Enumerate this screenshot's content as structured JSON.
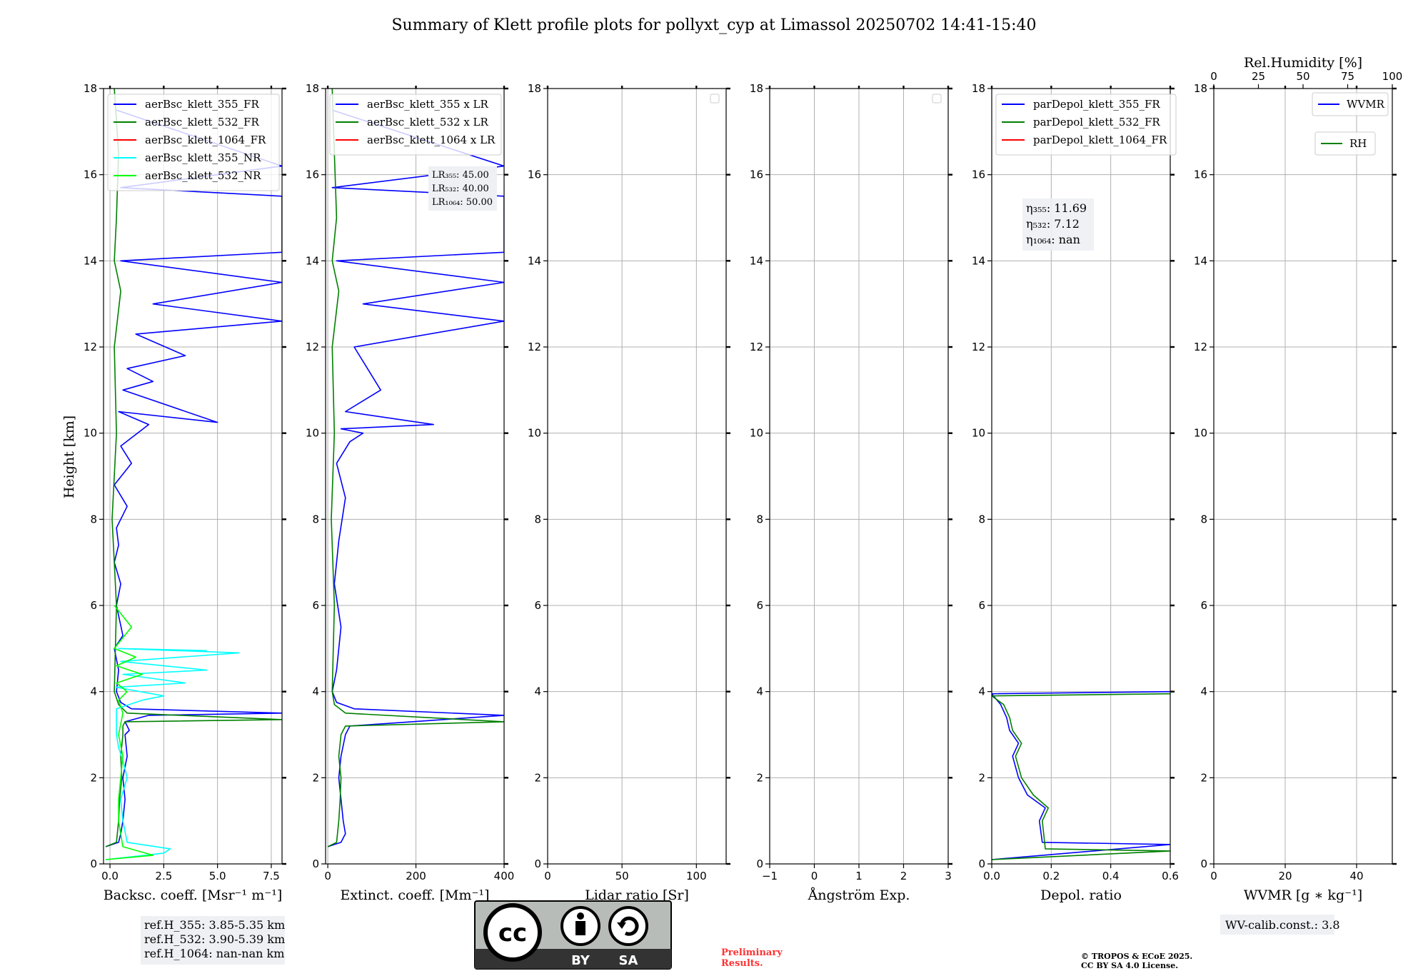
{
  "title": "Summary of Klett profile plots for pollyxt_cyp at Limassol 20250702 14:41-15:40",
  "ylabel": "Height [km]",
  "y_ticks": [
    "0",
    "2",
    "4",
    "6",
    "8",
    "10",
    "12",
    "14",
    "16",
    "18"
  ],
  "colors": {
    "blue": "#0000ff",
    "green": "#008000",
    "red": "#ff0000",
    "cyan": "#00ffff",
    "lightgreen": "#00ff00",
    "grid": "#b0b0b0"
  },
  "chart_data": [
    {
      "type": "line",
      "xlabel": "Backsc. coeff. [Msr⁻¹ m⁻¹]",
      "xlim": [
        -0.3,
        8.0
      ],
      "ylim": [
        0,
        18
      ],
      "x_ticks": [
        {
          "v": 0,
          "t": "0.0"
        },
        {
          "v": 2.5,
          "t": "2.5"
        },
        {
          "v": 5,
          "t": "5.0"
        },
        {
          "v": 7.5,
          "t": "7.5"
        }
      ],
      "legend": [
        "aerBsc_klett_355_FR",
        "aerBsc_klett_532_FR",
        "aerBsc_klett_1064_FR",
        "aerBsc_klett_355_NR",
        "aerBsc_klett_532_NR"
      ],
      "series": [
        {
          "name": "aerBsc_klett_355_FR",
          "color": "blue",
          "x": [
            -0.2,
            0.4,
            0.5,
            0.6,
            0.7,
            0.6,
            0.8,
            0.7,
            0.9,
            0.8,
            0.7,
            1.8,
            8.0,
            1.0,
            0.5,
            0.3,
            0.4,
            0.2,
            0.6,
            0.3,
            0.5,
            0.2,
            0.4,
            0.3,
            0.8,
            0.2,
            1.0,
            0.5,
            1.8,
            0.4,
            5.0,
            0.6,
            2.0,
            0.8,
            3.5,
            1.2,
            8.0,
            2.0,
            8.0,
            0.5,
            8.0,
            8.0,
            0.5,
            8.0,
            0.3
          ],
          "y": [
            0.4,
            0.5,
            0.7,
            1.0,
            1.5,
            2.0,
            2.5,
            3.0,
            3.1,
            3.2,
            3.3,
            3.45,
            3.5,
            3.6,
            3.75,
            4.0,
            4.5,
            5.0,
            5.3,
            6.0,
            6.5,
            7.0,
            7.4,
            7.8,
            8.3,
            8.8,
            9.3,
            9.7,
            10.2,
            10.5,
            10.25,
            11.0,
            11.2,
            11.5,
            11.8,
            12.3,
            12.6,
            13.0,
            13.5,
            14.0,
            14.2,
            15.5,
            15.7,
            16.2,
            17.5
          ]
        },
        {
          "name": "aerBsc_klett_532_FR",
          "color": "green",
          "x": [
            -0.2,
            0.3,
            0.4,
            0.45,
            0.55,
            0.5,
            0.6,
            0.6,
            0.7,
            8.0,
            0.8,
            0.4,
            0.2,
            0.3,
            0.1,
            0.3,
            0.2,
            0.5,
            0.2,
            0.3,
            0.4,
            0.2
          ],
          "y": [
            0.4,
            0.5,
            1.0,
            1.5,
            2.0,
            2.5,
            3.0,
            3.2,
            3.3,
            3.35,
            3.5,
            3.7,
            4.0,
            6.0,
            8.0,
            10.0,
            12.0,
            13.3,
            14.0,
            15.0,
            16.5,
            18.0
          ]
        },
        {
          "name": "aerBsc_klett_355_NR",
          "color": "cyan",
          "x": [
            -0.2,
            2.5,
            2.8,
            0.8,
            0.6,
            0.5,
            0.8,
            0.6,
            0.4,
            0.3,
            0.3,
            1.5,
            2.5,
            0.3,
            3.5,
            0.6,
            4.5,
            0.5,
            6.0,
            0.4,
            4.5
          ],
          "y": [
            0.1,
            0.25,
            0.35,
            0.5,
            1.0,
            1.5,
            2.0,
            2.4,
            2.7,
            3.0,
            3.6,
            3.8,
            3.9,
            4.1,
            4.2,
            4.4,
            4.5,
            4.7,
            4.9,
            5.0,
            4.95
          ]
        },
        {
          "name": "aerBsc_klett_532_NR",
          "color": "lightgreen",
          "x": [
            -0.2,
            2.0,
            0.6,
            0.4,
            0.4,
            0.5,
            0.6,
            0.4,
            0.6,
            0.4,
            0.8,
            0.3,
            1.5,
            0.3,
            1.2,
            0.2,
            1.0,
            0.2
          ],
          "y": [
            0.1,
            0.2,
            0.4,
            1.0,
            1.5,
            2.0,
            2.5,
            3.0,
            3.5,
            3.8,
            4.0,
            4.2,
            4.4,
            4.6,
            4.8,
            5.0,
            5.5,
            6.0
          ]
        }
      ],
      "notes": [
        "ref.H_355: 3.85-5.35 km",
        "ref.H_532: 3.90-5.39 km",
        "ref.H_1064: nan-nan km"
      ]
    },
    {
      "type": "line",
      "xlabel": "Extinct. coeff. [Mm⁻¹]",
      "xlim": [
        -5,
        400
      ],
      "ylim": [
        0,
        18
      ],
      "x_ticks": [
        {
          "v": 0,
          "t": "0"
        },
        {
          "v": 200,
          "t": "200"
        },
        {
          "v": 400,
          "t": "400"
        }
      ],
      "legend": [
        "aerBsc_klett_355 x LR",
        "aerBsc_klett_532 x LR",
        "aerBsc_klett_1064 x LR"
      ],
      "series": [
        {
          "name": "aerBsc_klett_355 x LR",
          "color": "blue",
          "x": [
            0,
            30,
            40,
            35,
            30,
            25,
            30,
            40,
            50,
            400,
            60,
            20,
            10,
            20,
            30,
            15,
            25,
            40,
            20,
            50,
            80,
            30,
            240,
            40,
            120,
            60,
            400,
            80,
            400,
            20,
            400,
            400,
            10,
            400,
            10
          ],
          "y": [
            0.4,
            0.5,
            0.7,
            1.0,
            1.5,
            2.0,
            2.5,
            3.0,
            3.2,
            3.45,
            3.6,
            3.75,
            4.0,
            4.5,
            5.5,
            6.5,
            7.5,
            8.5,
            9.3,
            9.8,
            10.0,
            10.1,
            10.2,
            10.5,
            11.0,
            12.0,
            12.6,
            13.0,
            13.5,
            14.0,
            14.2,
            15.5,
            15.7,
            16.2,
            17.5
          ]
        },
        {
          "name": "aerBsc_klett_532 x LR",
          "color": "green",
          "x": [
            0,
            20,
            25,
            28,
            30,
            25,
            30,
            40,
            400,
            40,
            15,
            10,
            15,
            8,
            15,
            10,
            25,
            10,
            20,
            15,
            10
          ],
          "y": [
            0.4,
            0.5,
            1.0,
            1.5,
            2.0,
            2.5,
            3.0,
            3.2,
            3.3,
            3.5,
            3.7,
            4.0,
            6.0,
            8.0,
            10.0,
            12.0,
            13.3,
            14.0,
            15.0,
            16.5,
            18.0
          ]
        }
      ],
      "notes": [
        "LR₃₅₅: 45.00",
        "LR₅₃₂: 40.00",
        "LR₁₀₆₄: 50.00"
      ]
    },
    {
      "type": "line",
      "xlabel": "Lidar ratio [Sr]",
      "xlim": [
        0,
        120
      ],
      "ylim": [
        0,
        18
      ],
      "x_ticks": [
        {
          "v": 0,
          "t": "0"
        },
        {
          "v": 50,
          "t": "50"
        },
        {
          "v": 100,
          "t": "100"
        }
      ],
      "series": []
    },
    {
      "type": "line",
      "xlabel": "Ångström Exp.",
      "xlim": [
        -1,
        3
      ],
      "ylim": [
        0,
        18
      ],
      "x_ticks": [
        {
          "v": -1,
          "t": "−1"
        },
        {
          "v": 0,
          "t": "0"
        },
        {
          "v": 1,
          "t": "1"
        },
        {
          "v": 2,
          "t": "2"
        },
        {
          "v": 3,
          "t": "3"
        }
      ],
      "series": []
    },
    {
      "type": "line",
      "xlabel": "Depol. ratio",
      "xlim": [
        0,
        0.6
      ],
      "ylim": [
        0,
        18
      ],
      "x_ticks": [
        {
          "v": 0,
          "t": "0.0"
        },
        {
          "v": 0.2,
          "t": "0.2"
        },
        {
          "v": 0.4,
          "t": "0.4"
        },
        {
          "v": 0.6,
          "t": "0.6"
        }
      ],
      "legend": [
        "parDepol_klett_355_FR",
        "parDepol_klett_532_FR",
        "parDepol_klett_1064_FR"
      ],
      "series": [
        {
          "name": "parDepol_klett_355_FR",
          "color": "blue",
          "x": [
            0,
            0.6,
            0.17,
            0.16,
            0.18,
            0.12,
            0.09,
            0.07,
            0.09,
            0.06,
            0.05,
            0.03,
            0.0,
            0.6
          ],
          "y": [
            0.1,
            0.45,
            0.5,
            1.0,
            1.3,
            1.6,
            2.0,
            2.5,
            2.8,
            3.1,
            3.4,
            3.7,
            3.95,
            4.0
          ]
        },
        {
          "name": "parDepol_klett_532_FR",
          "color": "green",
          "x": [
            0,
            0.6,
            0.18,
            0.17,
            0.19,
            0.14,
            0.1,
            0.08,
            0.1,
            0.07,
            0.06,
            0.04,
            0.0,
            0.6
          ],
          "y": [
            0.1,
            0.3,
            0.35,
            1.0,
            1.3,
            1.6,
            2.0,
            2.5,
            2.8,
            3.1,
            3.4,
            3.7,
            3.9,
            3.95
          ]
        }
      ],
      "notes": [
        "η₃₅₅: 11.69",
        "η₅₃₂: 7.12",
        "η₁₀₆₄: nan"
      ]
    },
    {
      "type": "line",
      "xlabel": "WVMR [g ∗ kg⁻¹]",
      "xlim": [
        0,
        50
      ],
      "ylim": [
        0,
        18
      ],
      "x_ticks": [
        {
          "v": 0,
          "t": "0"
        },
        {
          "v": 20,
          "t": "20"
        },
        {
          "v": 40,
          "t": "40"
        }
      ],
      "top_axis_label": "Rel.Humidity [%]",
      "top_ticks": [
        {
          "v": 0,
          "t": "0"
        },
        {
          "v": 25,
          "t": "25"
        },
        {
          "v": 50,
          "t": "50"
        },
        {
          "v": 75,
          "t": "75"
        },
        {
          "v": 100,
          "t": "100"
        }
      ],
      "legend": [
        "WVMR",
        "RH"
      ],
      "series": [],
      "notes": [
        "WV-calib.const.: 3.8"
      ]
    }
  ],
  "footer": {
    "license_badge": [
      "BY",
      "SA"
    ],
    "preliminary": [
      "Preliminary",
      "Results."
    ],
    "copyright": [
      "© TROPOS & ECoE 2025.",
      "CC BY SA 4.0 License."
    ]
  }
}
